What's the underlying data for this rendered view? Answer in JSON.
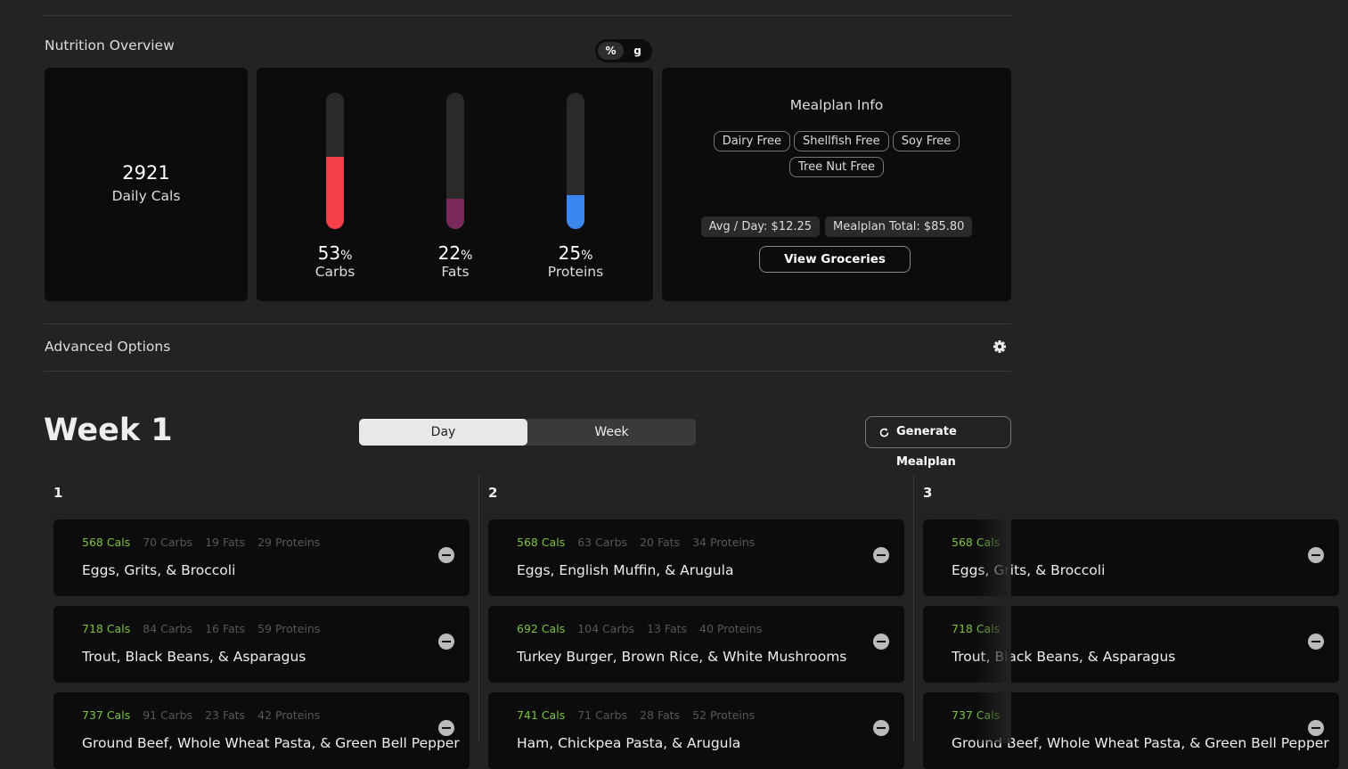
{
  "nutrition": {
    "title": "Nutrition Overview",
    "unit_toggle": [
      "%",
      "g"
    ],
    "daily_cals": {
      "value": "2921",
      "label": "Daily Cals"
    },
    "macros": [
      {
        "value": 53,
        "unit": "%",
        "name": "Carbs",
        "color": "#f4404a"
      },
      {
        "value": 22,
        "unit": "%",
        "name": "Fats",
        "color": "#7a2a5a"
      },
      {
        "value": 25,
        "unit": "%",
        "name": "Proteins",
        "color": "#3c86f0"
      }
    ],
    "mealplan_info": {
      "title": "Mealplan Info",
      "tags": [
        "Dairy Free",
        "Shellfish Free",
        "Soy Free",
        "Tree Nut Free"
      ],
      "avg_day": "Avg / Day: $12.25",
      "total": "Mealplan Total: $85.80",
      "button": "View Groceries"
    }
  },
  "advanced_options": "Advanced Options",
  "week": {
    "title": "Week 1",
    "tabs": [
      "Day",
      "Week"
    ],
    "generate": "Generate Mealplan"
  },
  "days": [
    {
      "label": "1",
      "meals": [
        {
          "cals": "568 Cals",
          "carbs": "70 Carbs",
          "fats": "19 Fats",
          "proteins": "29 Proteins",
          "name": "Eggs, Grits, & Broccoli"
        },
        {
          "cals": "718 Cals",
          "carbs": "84 Carbs",
          "fats": "16 Fats",
          "proteins": "59 Proteins",
          "name": "Trout, Black Beans, & Asparagus"
        },
        {
          "cals": "737 Cals",
          "carbs": "91 Carbs",
          "fats": "23 Fats",
          "proteins": "42 Proteins",
          "name": "Ground Beef, Whole Wheat Pasta, & Green Bell Pepper"
        }
      ]
    },
    {
      "label": "2",
      "meals": [
        {
          "cals": "568 Cals",
          "carbs": "63 Carbs",
          "fats": "20 Fats",
          "proteins": "34 Proteins",
          "name": "Eggs, English Muffin, & Arugula"
        },
        {
          "cals": "692 Cals",
          "carbs": "104 Carbs",
          "fats": "13 Fats",
          "proteins": "40 Proteins",
          "name": "Turkey Burger, Brown Rice, & White Mushrooms"
        },
        {
          "cals": "741 Cals",
          "carbs": "71 Carbs",
          "fats": "28 Fats",
          "proteins": "52 Proteins",
          "name": "Ham, Chickpea Pasta, & Arugula"
        }
      ]
    },
    {
      "label": "3",
      "meals": [
        {
          "cals": "568 Cals",
          "name": "Eggs, Grits, & Broccoli"
        },
        {
          "cals": "718 Cals",
          "name": "Trout, Black Beans, & Asparagus"
        },
        {
          "cals": "737 Cals",
          "name": "Ground Beef, Whole Wheat Pasta, & Green Bell Pepper"
        }
      ]
    }
  ]
}
